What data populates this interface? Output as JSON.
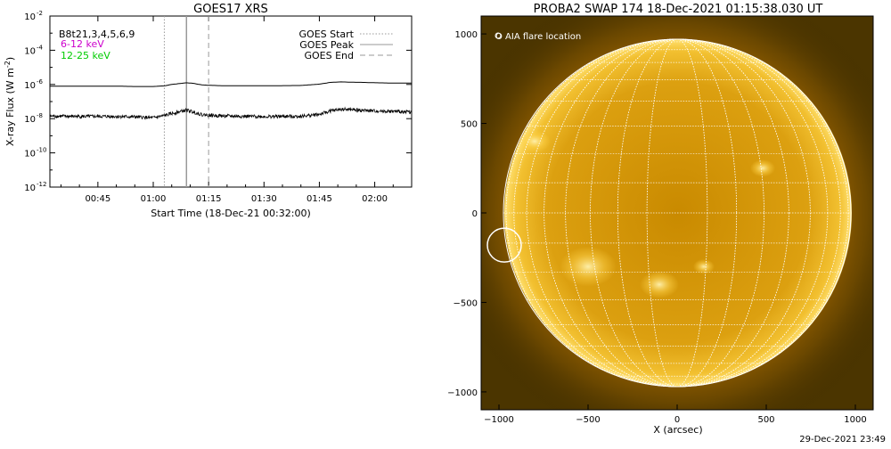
{
  "chart_data": [
    {
      "type": "line",
      "title": "GOES17 XRS",
      "xlabel": "Start Time (18-Dec-21 00:32:00)",
      "ylabel": "X-ray Flux (W m",
      "ylabel_sup": "-2",
      "ylabel_close": ")",
      "yscale": "log",
      "ylim_exp": [
        -12,
        -2
      ],
      "yticks": [
        {
          "base": "10",
          "exp": "-2"
        },
        {
          "base": "10",
          "exp": "-4"
        },
        {
          "base": "10",
          "exp": "-6"
        },
        {
          "base": "10",
          "exp": "-8"
        },
        {
          "base": "10",
          "exp": "-10"
        },
        {
          "base": "10",
          "exp": "-12"
        }
      ],
      "xlim_min": [
        32,
        130
      ],
      "xticks": [
        "00:45",
        "01:00",
        "01:15",
        "01:30",
        "01:45",
        "02:00"
      ],
      "legend_top_left": "B8t21,3,4,5,6,9",
      "legend_top_left_color": "#000000",
      "channels": [
        {
          "label": "6-12 keV",
          "color": "#cc00cc"
        },
        {
          "label": "12-25 keV",
          "color": "#00cc00"
        }
      ],
      "events": [
        {
          "name": "GOES Start",
          "time_min": 63,
          "style": "dotted"
        },
        {
          "name": "GOES Peak",
          "time_min": 69,
          "style": "solid"
        },
        {
          "name": "GOES End",
          "time_min": 75,
          "style": "dashed"
        }
      ],
      "series": [
        {
          "color": "#000000",
          "x_min": [
            32,
            40,
            50,
            55,
            60,
            63,
            65,
            67,
            69,
            71,
            73,
            75,
            80,
            90,
            100,
            105,
            108,
            111,
            114,
            117,
            120,
            125,
            130
          ],
          "log_y": [
            -6.1,
            -6.1,
            -6.1,
            -6.12,
            -6.12,
            -6.08,
            -6.0,
            -5.95,
            -5.9,
            -5.94,
            -6.02,
            -6.05,
            -6.08,
            -6.08,
            -6.06,
            -5.98,
            -5.88,
            -5.85,
            -5.87,
            -5.88,
            -5.9,
            -5.92,
            -5.92
          ]
        },
        {
          "color": "#000000",
          "x_min": [
            32,
            40,
            50,
            55,
            60,
            63,
            65,
            67,
            69,
            71,
            73,
            75,
            80,
            90,
            100,
            105,
            108,
            111,
            114,
            117,
            120,
            125,
            130
          ],
          "log_y": [
            -7.85,
            -7.87,
            -7.87,
            -7.9,
            -7.95,
            -7.82,
            -7.7,
            -7.6,
            -7.5,
            -7.62,
            -7.76,
            -7.8,
            -7.85,
            -7.88,
            -7.86,
            -7.75,
            -7.55,
            -7.45,
            -7.48,
            -7.52,
            -7.55,
            -7.58,
            -7.6
          ],
          "noise_band": 0.1
        }
      ]
    },
    {
      "type": "image",
      "title": "PROBA2 SWAP 174 18-Dec-2021 01:15:38.030 UT",
      "xlabel": "X (arcsec)",
      "xlim": [
        -1100,
        1100
      ],
      "ylim": [
        -1100,
        1100
      ],
      "xticks": [
        -1000,
        -500,
        0,
        500,
        1000
      ],
      "yticks": [
        1000,
        500,
        0,
        -500,
        -1000
      ],
      "xtick_labels": [
        "−1000",
        "−500",
        "0",
        "500",
        "1000"
      ],
      "ytick_labels": [
        "1000",
        "500",
        "0",
        "−500",
        "−1000"
      ],
      "legend": "O AIA flare location",
      "solar_radius_arcsec": 975,
      "grid_step_deg": 10,
      "flare_location": {
        "x": -970,
        "y": -180,
        "radius_arcsec": 95
      },
      "bright_regions": [
        {
          "x": -800,
          "y": 400,
          "r": 90
        },
        {
          "x": 480,
          "y": 250,
          "r": 70
        },
        {
          "x": -500,
          "y": -300,
          "r": 160
        },
        {
          "x": -100,
          "y": -400,
          "r": 110
        },
        {
          "x": 150,
          "y": -300,
          "r": 60
        }
      ],
      "colors": {
        "disk_core": "#d99a00",
        "limb": "#ffd95a",
        "corona": "#ff9a00",
        "background": "#4b3500"
      }
    }
  ],
  "footer_timestamp": "29-Dec-2021 23:49"
}
